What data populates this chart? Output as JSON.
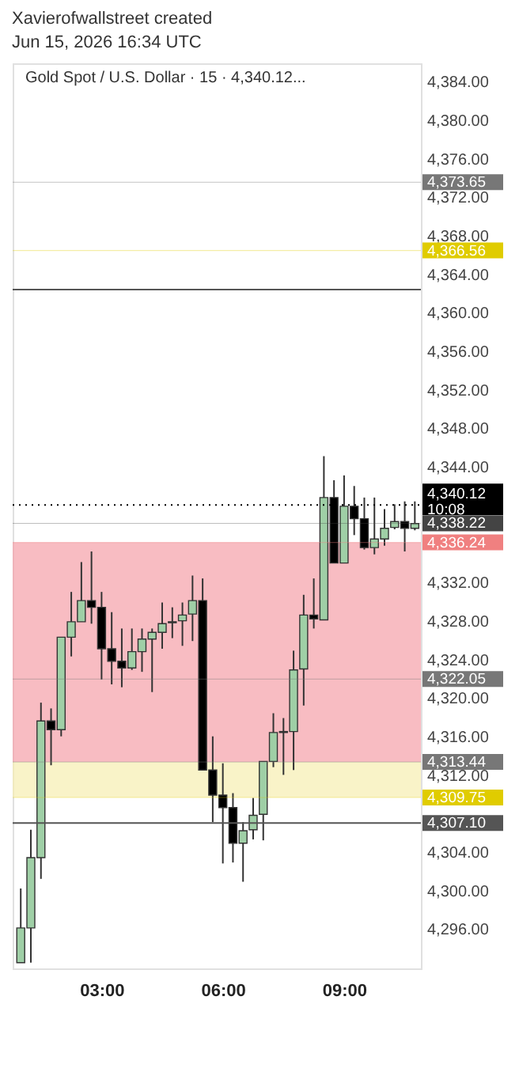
{
  "chart_data": {
    "type": "candlestick",
    "title": "Gold Spot / U.S. Dollar · 15 · 4,340.12...",
    "subtitle": "Xavierofwallstreet created\nJun 15, 2026 16:34 UTC",
    "x": [
      1.0,
      1.25,
      1.5,
      1.75,
      2.0,
      2.25,
      2.5,
      2.75,
      3.0,
      3.25,
      3.5,
      3.75,
      4.0,
      4.25,
      4.5,
      4.75,
      5.0,
      5.25,
      5.5,
      5.75,
      6.0,
      6.25,
      6.5,
      6.75,
      7.0,
      7.25,
      7.5,
      7.75,
      8.0,
      8.25,
      8.5,
      8.75,
      9.0,
      9.25,
      9.5,
      9.75,
      10.0,
      10.25,
      10.5,
      10.75
    ],
    "ohlc": [
      [
        4292.6,
        4300.3,
        4292.6,
        4296.2
      ],
      [
        4296.2,
        4306.4,
        4292.6,
        4303.5
      ],
      [
        4303.5,
        4319.6,
        4301.3,
        4317.7
      ],
      [
        4317.7,
        4319.0,
        4313.1,
        4316.8
      ],
      [
        4316.8,
        4326.4,
        4316.1,
        4326.4
      ],
      [
        4326.4,
        4331.1,
        4324.4,
        4328.0
      ],
      [
        4328.0,
        4334.2,
        4328.0,
        4330.2
      ],
      [
        4330.2,
        4335.3,
        4327.8,
        4329.5
      ],
      [
        4329.5,
        4331.1,
        4322.0,
        4325.2
      ],
      [
        4325.2,
        4329.0,
        4321.5,
        4323.9
      ],
      [
        4323.9,
        4327.3,
        4321.2,
        4323.2
      ],
      [
        4323.2,
        4327.3,
        4323.0,
        4324.9
      ],
      [
        4324.9,
        4327.3,
        4322.8,
        4326.2
      ],
      [
        4326.2,
        4327.3,
        4320.7,
        4326.9
      ],
      [
        4326.9,
        4330.0,
        4325.2,
        4327.8
      ],
      [
        4327.9,
        4329.5,
        4326.3,
        4328.0
      ],
      [
        4328.1,
        4330.0,
        4325.5,
        4328.7
      ],
      [
        4328.8,
        4332.8,
        4326.0,
        4330.2
      ],
      [
        4330.2,
        4332.5,
        4312.6,
        4312.6
      ],
      [
        4312.6,
        4316.1,
        4307.2,
        4310.0
      ],
      [
        4310.0,
        4313.3,
        4302.9,
        4308.7
      ],
      [
        4308.7,
        4310.2,
        4303.0,
        4305.0
      ],
      [
        4305.0,
        4307.2,
        4301.0,
        4306.3
      ],
      [
        4306.4,
        4309.7,
        4305.4,
        4307.9
      ],
      [
        4308.0,
        4313.5,
        4305.3,
        4313.5
      ],
      [
        4313.5,
        4318.5,
        4312.9,
        4316.5
      ],
      [
        4316.5,
        4318.0,
        4312.1,
        4316.6
      ],
      [
        4316.6,
        4325.0,
        4312.6,
        4323.0
      ],
      [
        4323.1,
        4330.8,
        4319.3,
        4328.7
      ],
      [
        4328.7,
        4332.5,
        4327.3,
        4328.3
      ],
      [
        4328.2,
        4345.2,
        4328.2,
        4340.9
      ],
      [
        4340.9,
        4342.7,
        4334.1,
        4334.1
      ],
      [
        4334.1,
        4343.2,
        4334.1,
        4340.0
      ],
      [
        4340.0,
        4342.1,
        4337.0,
        4338.7
      ],
      [
        4338.7,
        4340.9,
        4335.5,
        4335.7
      ],
      [
        4335.7,
        4340.9,
        4335.0,
        4336.6
      ],
      [
        4336.6,
        4339.7,
        4335.9,
        4337.7
      ],
      [
        4337.8,
        4340.2,
        4337.6,
        4338.4
      ],
      [
        4338.4,
        4340.5,
        4335.3,
        4337.7
      ],
      [
        4337.7,
        4340.5,
        4337.5,
        4338.2
      ]
    ],
    "colors": [
      "#9fcfa6",
      "#9fcfa6",
      "#9fcfa6",
      "#000000",
      "#9fcfa6",
      "#9fcfa6",
      "#9fcfa6",
      "#000000",
      "#000000",
      "#000000",
      "#000000",
      "#9fcfa6",
      "#9fcfa6",
      "#9fcfa6",
      "#9fcfa6",
      "#9fcfa6",
      "#9fcfa6",
      "#9fcfa6",
      "#000000",
      "#000000",
      "#000000",
      "#000000",
      "#9fcfa6",
      "#9fcfa6",
      "#9fcfa6",
      "#9fcfa6",
      "#9fcfa6",
      "#9fcfa6",
      "#9fcfa6",
      "#000000",
      "#9fcfa6",
      "#000000",
      "#9fcfa6",
      "#000000",
      "#000000",
      "#9fcfa6",
      "#9fcfa6",
      "#9fcfa6",
      "#000000",
      "#9fcfa6"
    ],
    "xlim": [
      0.8,
      10.9
    ],
    "xticks": [
      {
        "value": 3,
        "label": "03:00"
      },
      {
        "value": 6,
        "label": "06:00"
      },
      {
        "value": 9,
        "label": "09:00"
      }
    ],
    "ylim": [
      4292,
      4386
    ],
    "yticks": [
      {
        "value": 4296,
        "label": "4,296.00"
      },
      {
        "value": 4300,
        "label": "4,300.00"
      },
      {
        "value": 4304,
        "label": "4,304.00"
      },
      {
        "value": 4312,
        "label": "4,312.00"
      },
      {
        "value": 4316,
        "label": "4,316.00"
      },
      {
        "value": 4320,
        "label": "4,320.00"
      },
      {
        "value": 4324,
        "label": "4,324.00"
      },
      {
        "value": 4328,
        "label": "4,328.00"
      },
      {
        "value": 4332,
        "label": "4,332.00"
      },
      {
        "value": 4344,
        "label": "4,344.00"
      },
      {
        "value": 4348,
        "label": "4,348.00"
      },
      {
        "value": 4352,
        "label": "4,352.00"
      },
      {
        "value": 4356,
        "label": "4,356.00"
      },
      {
        "value": 4360,
        "label": "4,360.00"
      },
      {
        "value": 4364,
        "label": "4,364.00"
      },
      {
        "value": 4368,
        "label": "4,368.00"
      },
      {
        "value": 4372,
        "label": "4,372.00"
      },
      {
        "value": 4376,
        "label": "4,376.00"
      },
      {
        "value": 4380,
        "label": "4,380.00"
      },
      {
        "value": 4384,
        "label": "4,384.00"
      }
    ],
    "grid": false,
    "bands": [
      {
        "axis": "y",
        "from": 4313.44,
        "to": 4336.24,
        "color": "#f5a0a8"
      },
      {
        "axis": "y",
        "from": 4309.75,
        "to": 4313.44,
        "color": "#f7eeb0"
      }
    ],
    "ref_lines": [
      {
        "axis": "y",
        "value": 4362.5,
        "color": "#555555",
        "line_style": "solid"
      },
      {
        "axis": "y",
        "value": 4340.12,
        "label": "4,340.12\n10:08",
        "color": "#000000",
        "line_style": "dotted"
      },
      {
        "axis": "y",
        "value": 4307.1,
        "label": "4,307.10",
        "color": "#555555",
        "line_style": "solid"
      },
      {
        "axis": "y",
        "value": 4373.65,
        "label": "4,373.65",
        "color": "#777777"
      },
      {
        "axis": "y",
        "value": 4366.56,
        "label": "4,366.56",
        "color": "#e0cc00"
      },
      {
        "axis": "y",
        "value": 4338.22,
        "label": "4,338.22",
        "color": "#444444"
      },
      {
        "axis": "y",
        "value": 4322.05,
        "label": "4,322.05",
        "color": "#777777"
      },
      {
        "axis": "y",
        "value": 4336.24,
        "label": "4,336.24",
        "color": "#f08080"
      },
      {
        "axis": "y",
        "value": 4313.44,
        "label": "4,313.44",
        "color": "#777777"
      },
      {
        "axis": "y",
        "value": 4309.75,
        "label": "4,309.75",
        "color": "#e0cc00"
      }
    ]
  }
}
